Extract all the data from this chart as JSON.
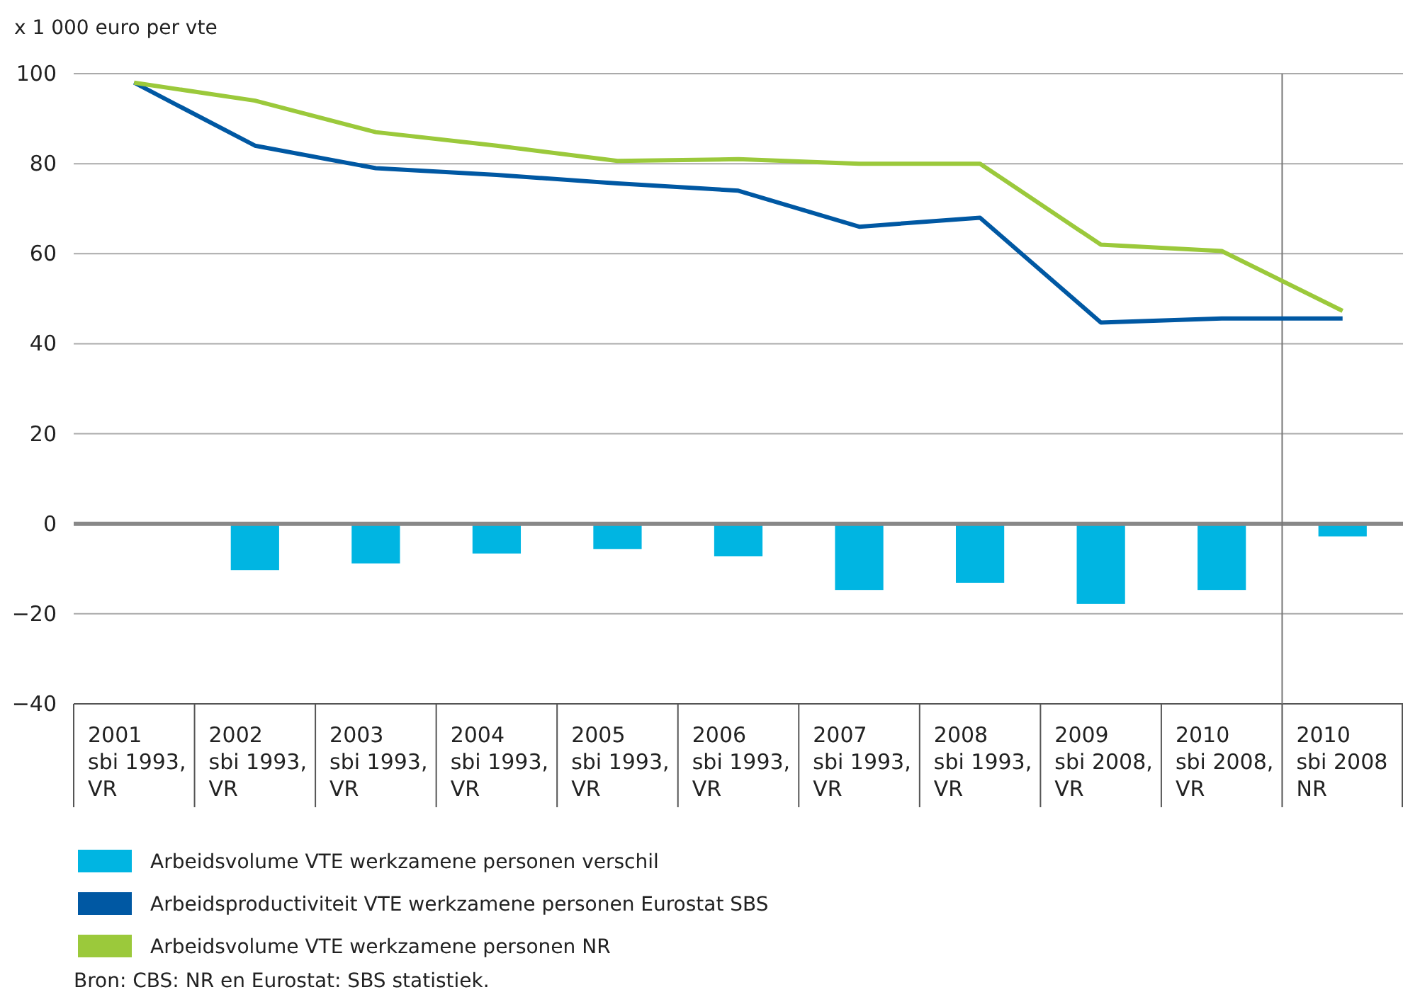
{
  "chart_data": {
    "type": "bar",
    "ylabel": "x 1 000 euro per vte",
    "categories": [
      "2001\nsbi 1993,\nVR",
      "2002\nsbi 1993,\nVR",
      "2003\nsbi 1993,\nVR",
      "2004\nsbi 1993,\nVR",
      "2005\nsbi 1993,\nVR",
      "2006\nsbi 1993,\nVR",
      "2007\nsbi 1993,\nVR",
      "2008\nsbi 1993,\nVR",
      "2009\nsbi 2008,\nVR",
      "2010\nsbi 2008,\nVR",
      "2010\nsbi 2008\nNR"
    ],
    "series": [
      {
        "name": "Arbeidsvolume VTE werkzamene personen verschil",
        "color": "#00b5e2",
        "values": [
          null,
          -10.3,
          -8.8,
          -6.6,
          -5.6,
          -7.2,
          -14.7,
          -13.1,
          -17.8,
          -14.7,
          -2.8
        ]
      },
      {
        "name": "Arbeidsproductiviteit VTE werkzamene personen Eurostat SBS",
        "type": "line",
        "color": "#0058a3",
        "values": [
          98,
          84,
          79,
          77.5,
          75.6,
          74,
          66,
          68,
          44.7,
          45.6,
          45.6
        ]
      },
      {
        "name": "Arbeidsvolume VTE werkzamene personen NR",
        "type": "line",
        "color": "#9bc93b",
        "values": [
          98,
          94,
          87,
          84,
          80.6,
          81,
          80,
          80,
          62,
          60.6,
          47.3
        ]
      }
    ],
    "ylim": [
      -40,
      100
    ],
    "yticks": [
      {
        "value": -40,
        "label": "−40"
      },
      {
        "value": -20,
        "label": "−20"
      },
      0,
      20,
      40,
      60,
      80,
      100
    ],
    "ref_lines": [
      {
        "axis": "x",
        "value": "2010\nsbi 2008\nNR",
        "color": "#777777"
      }
    ],
    "grid": "y",
    "legend": "bottom",
    "marker": "none",
    "line_style": "solid",
    "annotations": [
      "Bron: CBS: NR en Eurostat: SBS statistiek."
    ]
  }
}
